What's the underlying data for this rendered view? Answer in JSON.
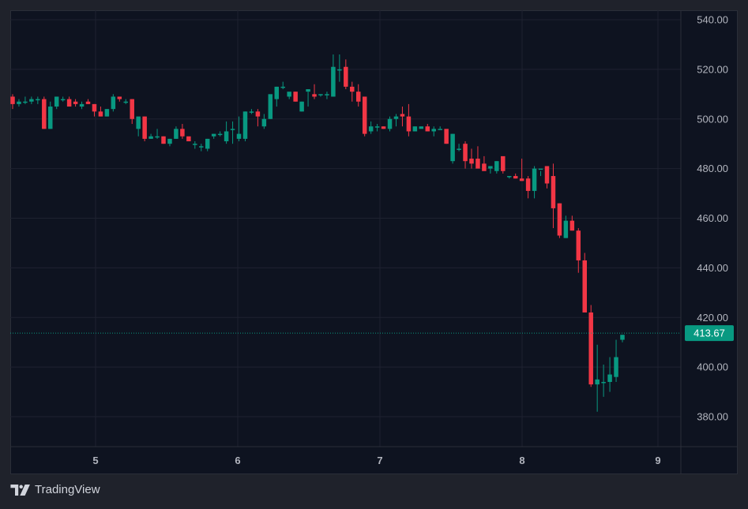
{
  "branding": {
    "name": "TradingView",
    "logo_icon": "tradingview-logo-icon"
  },
  "last_price": {
    "value": "413.67",
    "color": "#089981"
  },
  "colors": {
    "up": "#089981",
    "down": "#f23645",
    "grid": "#1e2230",
    "background": "#0e1320",
    "axis_text": "#b2b5be"
  },
  "chart_data": {
    "type": "candlestick",
    "title": "",
    "xlabel": "",
    "ylabel": "",
    "ylim": [
      370,
      543
    ],
    "y_ticks": [
      "540.00",
      "520.00",
      "500.00",
      "480.00",
      "460.00",
      "440.00",
      "420.00",
      "400.00",
      "380.00"
    ],
    "x_ticks": [
      "5",
      "6",
      "7",
      "8",
      "9"
    ],
    "grid": true,
    "last_price_line": 413.67,
    "candles": [
      [
        509,
        510,
        504,
        506
      ],
      [
        506,
        508,
        505,
        507
      ],
      [
        507,
        509,
        506,
        507
      ],
      [
        507,
        509,
        506,
        508
      ],
      [
        508,
        509,
        506,
        508
      ],
      [
        508,
        509,
        496,
        496
      ],
      [
        496,
        507,
        496,
        505
      ],
      [
        505,
        509,
        504,
        509
      ],
      [
        508,
        509,
        507,
        508
      ],
      [
        508,
        509,
        506,
        505
      ],
      [
        507,
        508,
        505,
        506
      ],
      [
        505,
        507,
        504,
        506
      ],
      [
        507,
        508,
        506,
        506
      ],
      [
        506,
        506,
        501,
        503
      ],
      [
        503,
        505,
        501,
        501
      ],
      [
        501,
        504,
        501,
        504
      ],
      [
        504,
        510,
        503,
        509
      ],
      [
        509,
        509,
        507,
        508
      ],
      [
        507,
        508,
        506,
        507
      ],
      [
        508,
        508,
        498,
        500
      ],
      [
        496,
        499,
        493,
        501
      ],
      [
        501,
        501,
        491,
        492
      ],
      [
        492,
        494,
        492,
        493
      ],
      [
        493,
        496,
        492,
        493
      ],
      [
        493,
        493,
        490,
        490
      ],
      [
        490,
        492,
        489,
        492
      ],
      [
        492,
        497,
        492,
        496
      ],
      [
        496,
        498,
        492,
        493
      ],
      [
        493,
        492,
        491,
        491
      ],
      [
        490,
        491,
        488,
        490
      ],
      [
        489,
        490,
        487,
        489
      ],
      [
        488,
        492,
        487,
        492
      ],
      [
        493,
        494,
        492,
        494
      ],
      [
        494,
        495,
        493,
        494
      ],
      [
        491,
        499,
        490,
        495
      ],
      [
        496,
        499,
        490,
        496
      ],
      [
        492,
        501,
        491,
        494
      ],
      [
        492,
        503,
        491,
        503
      ],
      [
        503,
        504,
        502,
        503
      ],
      [
        503,
        504,
        497,
        501
      ],
      [
        497,
        502,
        496,
        500
      ],
      [
        500,
        509,
        500,
        510
      ],
      [
        508,
        513,
        505,
        513
      ],
      [
        513,
        515,
        512,
        513
      ],
      [
        509,
        510,
        508,
        511
      ],
      [
        511,
        511,
        507,
        507
      ],
      [
        503,
        507,
        503,
        507
      ],
      [
        511,
        511,
        505,
        512
      ],
      [
        510,
        514,
        508,
        509
      ],
      [
        510,
        510,
        509,
        510
      ],
      [
        510,
        511,
        508,
        510
      ],
      [
        509,
        526,
        509,
        521
      ],
      [
        520,
        526,
        515,
        520
      ],
      [
        521,
        524,
        512,
        513
      ],
      [
        513,
        515,
        507,
        511
      ],
      [
        511,
        514,
        505,
        507
      ],
      [
        509,
        509,
        493,
        494
      ],
      [
        495,
        499,
        494,
        497
      ],
      [
        497,
        498,
        495,
        497
      ],
      [
        497,
        497,
        496,
        496
      ],
      [
        496,
        501,
        495,
        500
      ],
      [
        500,
        502,
        497,
        501
      ],
      [
        502,
        505,
        497,
        501
      ],
      [
        501,
        506,
        493,
        495
      ],
      [
        495,
        497,
        495,
        497
      ],
      [
        496,
        496,
        496,
        497
      ],
      [
        497,
        498,
        495,
        495
      ],
      [
        495,
        497,
        493,
        496
      ],
      [
        496,
        497,
        496,
        496
      ],
      [
        496,
        494,
        490,
        490
      ],
      [
        483,
        494,
        482,
        494
      ],
      [
        488,
        490,
        487,
        488
      ],
      [
        490,
        491,
        480,
        483
      ],
      [
        484,
        488,
        480,
        482
      ],
      [
        484,
        489,
        481,
        480
      ],
      [
        482,
        485,
        480,
        479
      ],
      [
        480,
        481,
        478,
        481
      ],
      [
        479,
        483,
        478,
        483
      ],
      [
        485,
        484,
        478,
        479
      ],
      [
        477,
        477,
        476,
        477
      ],
      [
        477,
        478,
        476,
        476
      ],
      [
        476,
        484,
        475,
        475
      ],
      [
        476,
        477,
        468,
        471
      ],
      [
        471,
        481,
        468,
        480
      ],
      [
        480,
        479,
        477,
        480
      ],
      [
        481,
        481,
        472,
        474
      ],
      [
        477,
        482,
        456,
        464
      ],
      [
        466,
        466,
        452,
        453
      ],
      [
        452,
        461,
        452,
        459
      ],
      [
        459,
        461,
        455,
        455
      ],
      [
        455,
        456,
        438,
        443
      ],
      [
        443,
        446,
        430,
        422
      ],
      [
        422,
        425,
        392,
        393
      ],
      [
        393,
        409,
        382,
        395
      ],
      [
        394,
        401,
        388,
        394
      ],
      [
        394,
        404,
        390,
        397
      ],
      [
        396,
        411,
        394,
        404
      ],
      [
        411,
        413,
        410,
        413
      ]
    ]
  }
}
